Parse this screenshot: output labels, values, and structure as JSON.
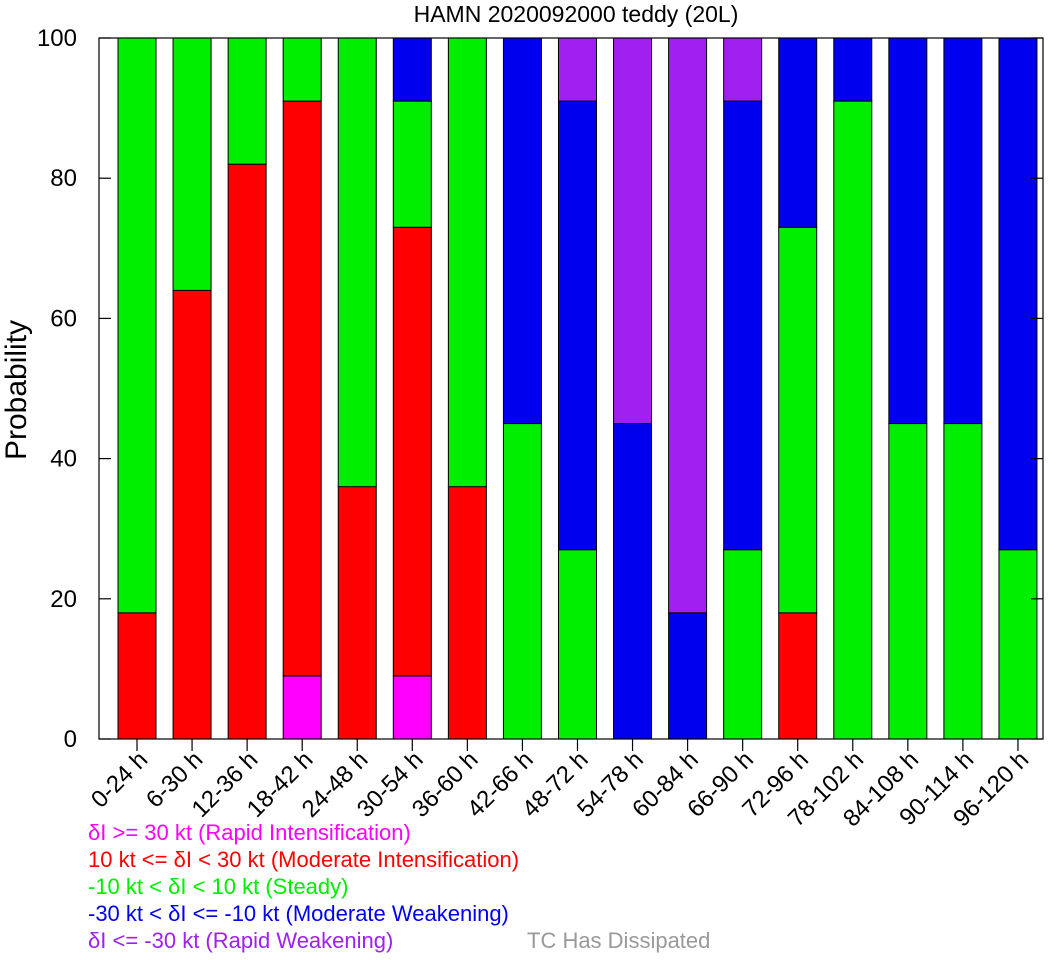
{
  "chart_data": {
    "type": "bar",
    "stacked": true,
    "title": "HAMN 2020092000 teddy (20L)",
    "ylabel": "Probability",
    "xlabel": "",
    "ylim": [
      0,
      100
    ],
    "yticks": [
      "0",
      "20",
      "40",
      "60",
      "80",
      "100"
    ],
    "categories": [
      "0-24 h",
      "6-30 h",
      "12-36 h",
      "18-42 h",
      "24-48 h",
      "30-54 h",
      "36-60 h",
      "42-66 h",
      "48-72 h",
      "54-78 h",
      "60-84 h",
      "66-90 h",
      "72-96 h",
      "78-102 h",
      "84-108 h",
      "90-114 h",
      "96-120 h"
    ],
    "series": [
      {
        "name": "δI >= 30 kt (Rapid Intensification)",
        "color": "#ff00ff",
        "values": [
          0,
          0,
          0,
          9,
          0,
          9,
          0,
          0,
          0,
          0,
          0,
          0,
          0,
          0,
          0,
          0,
          0
        ]
      },
      {
        "name": "10 kt <= δI < 30 kt (Moderate Intensification)",
        "color": "#ff0000",
        "values": [
          18,
          64,
          82,
          82,
          36,
          64,
          36,
          0,
          0,
          0,
          0,
          0,
          18,
          0,
          0,
          0,
          0
        ]
      },
      {
        "name": "-10 kt < δI < 10 kt (Steady)",
        "color": "#00ee00",
        "values": [
          82,
          36,
          18,
          9,
          64,
          18,
          64,
          45,
          27,
          0,
          0,
          27,
          55,
          91,
          45,
          45,
          27
        ]
      },
      {
        "name": "-30 kt < δI <= -10 kt (Moderate Weakening)",
        "color": "#0000ee",
        "values": [
          0,
          0,
          0,
          0,
          0,
          9,
          0,
          55,
          64,
          45,
          18,
          64,
          27,
          9,
          55,
          55,
          73
        ]
      },
      {
        "name": "δI <= -30 kt (Rapid Weakening)",
        "color": "#a020f0",
        "values": [
          0,
          0,
          0,
          0,
          0,
          0,
          0,
          0,
          9,
          55,
          82,
          9,
          0,
          0,
          0,
          0,
          0
        ]
      }
    ],
    "legend": {
      "items": [
        {
          "text": "δI >= 30 kt (Rapid Intensification)",
          "color": "#ff00ff"
        },
        {
          "text": "10 kt <= δI < 30 kt (Moderate Intensification)",
          "color": "#ff0000"
        },
        {
          "text": "-10 kt < δI < 10 kt (Steady)",
          "color": "#00ee00"
        },
        {
          "text": "-30 kt < δI <= -10 kt (Moderate Weakening)",
          "color": "#0000ee"
        },
        {
          "text": "δI <= -30 kt (Rapid Weakening)",
          "color": "#a020f0"
        }
      ],
      "dissipated": {
        "text": "TC Has Dissipated",
        "color": "#999999"
      },
      "placement": "bottom"
    },
    "grid": false
  }
}
